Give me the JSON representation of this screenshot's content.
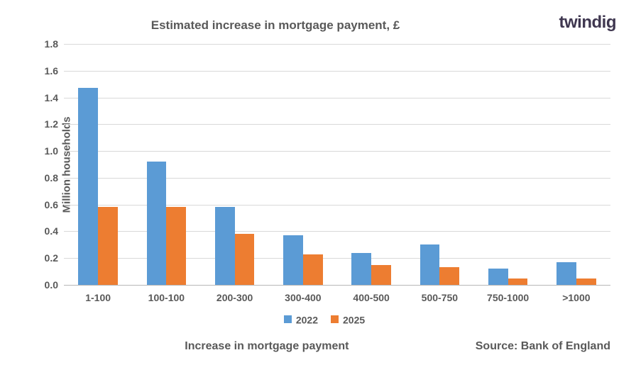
{
  "logo": {
    "text1": "tw",
    "text2": "ind",
    "text3": "ig",
    "accent_color": "#f47b2a",
    "main_color": "#3f3750"
  },
  "chart": {
    "type": "bar",
    "title": "Estimated increase in mortgage payment, £",
    "title_color": "#595959",
    "title_fontsize": 17,
    "yaxis_label": "Million households",
    "xaxis_label": "Increase in mortgage payment",
    "source": "Source: Bank of England",
    "background_color": "#ffffff",
    "plot_border_color": "#b7b7b7",
    "grid_color": "#d9d9d9",
    "ylim": [
      0.0,
      1.8
    ],
    "ytick_step": 0.2,
    "yticks": [
      "0.0",
      "0.2",
      "0.4",
      "0.6",
      "0.8",
      "1.0",
      "1.2",
      "1.4",
      "1.6",
      "1.8"
    ],
    "categories": [
      "1-100",
      "100-100",
      "200-300",
      "300-400",
      "400-500",
      "500-750",
      "750-1000",
      ">1000"
    ],
    "series": [
      {
        "name": "2022",
        "color": "#5b9bd5",
        "values": [
          1.47,
          0.92,
          0.58,
          0.37,
          0.24,
          0.3,
          0.12,
          0.17
        ]
      },
      {
        "name": "2025",
        "color": "#ed7d31",
        "values": [
          0.58,
          0.58,
          0.38,
          0.23,
          0.15,
          0.13,
          0.05,
          0.05
        ]
      }
    ],
    "bar_width_ratio": 0.38,
    "group_gap_ratio": 0.24
  }
}
